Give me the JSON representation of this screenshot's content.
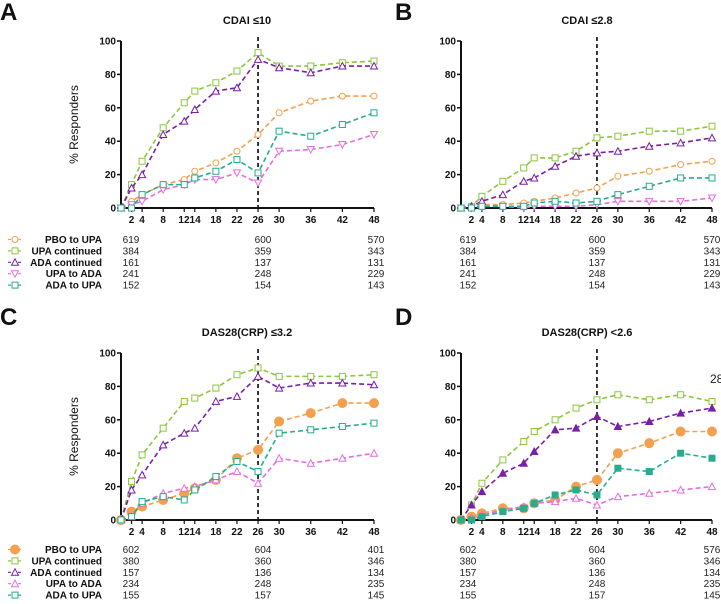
{
  "colors": {
    "PBO to UPA": "#f3a04f",
    "UPA continued": "#8cc63e",
    "ADA continued": "#7a1fa8",
    "UPA to ADA": "#e46fe0",
    "ADA to UPA": "#25ad8c"
  },
  "chart_data": [
    {
      "panel": "A",
      "type": "line",
      "title": "CDAI ≤10",
      "ylabel": "% Responders",
      "xlabel": "",
      "ylim": [
        0,
        100
      ],
      "yticks": [
        0,
        20,
        40,
        60,
        80,
        100
      ],
      "x": [
        0,
        2,
        4,
        8,
        12,
        14,
        18,
        22,
        26,
        30,
        36,
        42,
        48
      ],
      "xtick_labels": [
        "2",
        "4",
        "8",
        "1214",
        "18",
        "22",
        "26",
        "30",
        "36",
        "42",
        "48"
      ],
      "reference_line_week": 26,
      "grid": false,
      "series": [
        {
          "name": "PBO to UPA",
          "marker": "circle-open",
          "values": [
            0,
            4,
            8,
            14,
            17,
            22,
            27,
            34,
            44,
            57,
            64,
            67,
            67
          ]
        },
        {
          "name": "UPA continued",
          "marker": "square-open",
          "values": [
            0,
            14,
            28,
            48,
            63,
            70,
            75,
            82,
            93,
            85,
            85,
            87,
            88
          ]
        },
        {
          "name": "ADA continued",
          "marker": "triangle-open",
          "values": [
            0,
            12,
            20,
            44,
            52,
            59,
            70,
            72,
            89,
            84,
            81,
            85,
            85
          ]
        },
        {
          "name": "UPA to ADA",
          "marker": "triangle-down-open",
          "values": [
            0,
            2,
            4,
            11,
            14,
            17,
            17,
            21,
            15,
            34,
            35,
            38,
            44
          ]
        },
        {
          "name": "ADA to UPA",
          "marker": "square-open",
          "values": [
            0,
            0,
            8,
            14,
            14,
            18,
            22,
            29,
            21,
            46,
            43,
            50,
            57
          ]
        }
      ],
      "n_table": [
        [
          "619",
          "600",
          "570"
        ],
        [
          "384",
          "359",
          "343"
        ],
        [
          "161",
          "137",
          "131"
        ],
        [
          "241",
          "248",
          "229"
        ],
        [
          "152",
          "154",
          "143"
        ]
      ]
    },
    {
      "panel": "B",
      "type": "line",
      "title": "CDAI ≤2.8",
      "ylabel": "",
      "xlabel": "",
      "ylim": [
        0,
        100
      ],
      "yticks": [
        0,
        20,
        40,
        60,
        80,
        100
      ],
      "x": [
        0,
        2,
        4,
        8,
        12,
        14,
        18,
        22,
        26,
        30,
        36,
        42,
        48
      ],
      "xtick_labels": [
        "2",
        "4",
        "8",
        "1214",
        "18",
        "22",
        "26",
        "30",
        "36",
        "42",
        "48"
      ],
      "reference_line_week": 26,
      "grid": false,
      "series": [
        {
          "name": "PBO to UPA",
          "marker": "circle-open",
          "values": [
            0,
            1,
            2,
            2,
            3,
            4,
            6,
            9,
            12,
            19,
            22,
            26,
            28
          ]
        },
        {
          "name": "UPA continued",
          "marker": "square-open",
          "values": [
            0,
            1,
            7,
            16,
            24,
            30,
            30,
            34,
            42,
            43,
            46,
            46,
            49
          ]
        },
        {
          "name": "ADA continued",
          "marker": "triangle-open",
          "values": [
            0,
            1,
            4,
            8,
            16,
            18,
            25,
            31,
            33,
            34,
            37,
            39,
            42
          ]
        },
        {
          "name": "UPA to ADA",
          "marker": "triangle-down-open",
          "values": [
            0,
            0,
            1,
            1,
            0,
            1,
            1,
            1,
            2,
            4,
            4,
            4,
            6
          ]
        },
        {
          "name": "ADA to UPA",
          "marker": "square-open",
          "values": [
            0,
            0,
            1,
            1,
            1,
            3,
            4,
            3,
            4,
            8,
            13,
            18,
            18
          ]
        }
      ],
      "n_table": [
        [
          "619",
          "600",
          "570"
        ],
        [
          "384",
          "359",
          "343"
        ],
        [
          "161",
          "137",
          "131"
        ],
        [
          "241",
          "248",
          "229"
        ],
        [
          "152",
          "154",
          "143"
        ]
      ]
    },
    {
      "panel": "C",
      "type": "line",
      "title": "DAS28(CRP) ≤3.2",
      "ylabel": "% Responders",
      "xlabel": "",
      "ylim": [
        0,
        100
      ],
      "yticks": [
        0,
        20,
        40,
        60,
        80,
        100
      ],
      "x": [
        0,
        2,
        4,
        8,
        12,
        14,
        18,
        22,
        26,
        30,
        36,
        42,
        48
      ],
      "xtick_labels": [
        "2",
        "4",
        "8",
        "1214",
        "18",
        "22",
        "26",
        "30",
        "36",
        "42",
        "48"
      ],
      "reference_line_week": 26,
      "grid": false,
      "series": [
        {
          "name": "PBO to UPA",
          "marker": "circle-filled",
          "values": [
            0,
            5,
            8,
            12,
            16,
            19,
            24,
            37,
            42,
            59,
            64,
            70,
            70
          ]
        },
        {
          "name": "UPA continued",
          "marker": "square-open",
          "values": [
            0,
            23,
            39,
            55,
            71,
            73,
            79,
            87,
            91,
            86,
            86,
            86,
            87
          ]
        },
        {
          "name": "ADA continued",
          "marker": "triangle-open",
          "values": [
            0,
            18,
            27,
            45,
            52,
            55,
            71,
            74,
            86,
            79,
            82,
            82,
            81
          ]
        },
        {
          "name": "UPA to ADA",
          "marker": "triangle-open",
          "values": [
            0,
            2,
            10,
            16,
            19,
            20,
            24,
            29,
            22,
            37,
            34,
            37,
            40
          ]
        },
        {
          "name": "ADA to UPA",
          "marker": "square-open",
          "values": [
            0,
            2,
            11,
            14,
            12,
            18,
            26,
            35,
            29,
            52,
            54,
            56,
            58
          ]
        }
      ],
      "n_table": [
        [
          "602",
          "604",
          "401"
        ],
        [
          "380",
          "360",
          "346"
        ],
        [
          "157",
          "136",
          "134"
        ],
        [
          "234",
          "248",
          "235"
        ],
        [
          "155",
          "157",
          "145"
        ]
      ]
    },
    {
      "panel": "D",
      "type": "line",
      "title": "DAS28(CRP) <2.6",
      "ylabel": "",
      "xlabel": "",
      "ylim": [
        0,
        100
      ],
      "yticks": [
        0,
        20,
        40,
        60,
        80,
        100
      ],
      "x": [
        0,
        2,
        4,
        8,
        12,
        14,
        18,
        22,
        26,
        30,
        36,
        42,
        48
      ],
      "xtick_labels": [
        "2",
        "4",
        "8",
        "1214",
        "18",
        "22",
        "26",
        "30",
        "36",
        "42",
        "48"
      ],
      "reference_line_week": 26,
      "grid": false,
      "annotation": "28",
      "series": [
        {
          "name": "PBO to UPA",
          "marker": "circle-filled",
          "values": [
            0,
            2,
            4,
            7,
            7,
            10,
            12,
            20,
            24,
            40,
            46,
            53,
            53
          ]
        },
        {
          "name": "UPA continued",
          "marker": "square-open",
          "values": [
            0,
            9,
            22,
            36,
            47,
            53,
            60,
            67,
            72,
            75,
            72,
            75,
            71
          ]
        },
        {
          "name": "ADA continued",
          "marker": "triangle-filled",
          "values": [
            0,
            9,
            17,
            28,
            34,
            41,
            54,
            55,
            62,
            56,
            59,
            64,
            67
          ]
        },
        {
          "name": "UPA to ADA",
          "marker": "triangle-open",
          "values": [
            0,
            1,
            3,
            6,
            8,
            10,
            11,
            13,
            9,
            14,
            16,
            18,
            20
          ]
        },
        {
          "name": "ADA to UPA",
          "marker": "square-filled",
          "values": [
            0,
            0,
            2,
            5,
            7,
            10,
            15,
            18,
            15,
            31,
            29,
            40,
            37
          ]
        }
      ],
      "n_table": [
        [
          "602",
          "604",
          "576"
        ],
        [
          "380",
          "360",
          "346"
        ],
        [
          "157",
          "136",
          "134"
        ],
        [
          "234",
          "248",
          "235"
        ],
        [
          "155",
          "157",
          "145"
        ]
      ]
    }
  ]
}
